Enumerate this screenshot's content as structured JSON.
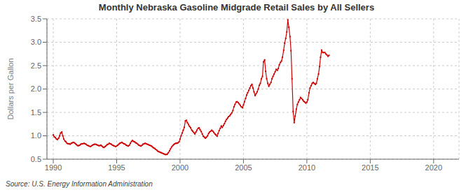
{
  "chart_data": {
    "type": "line",
    "title": "Monthly Nebraska Gasoline Midgrade Retail Sales by All Sellers",
    "ylabel": "Dollars per Gallon",
    "annotations": [
      "Source: U.S. Energy Information Administration"
    ],
    "color": "#cc0000",
    "marker": "square",
    "line_style": "solid",
    "grid": true,
    "xlim": [
      1989.5,
      2022
    ],
    "ylim": [
      0.5,
      3.5
    ],
    "xticks": [
      1990,
      1995,
      2000,
      2005,
      2010,
      2015,
      2020
    ],
    "yticks": [
      0.5,
      {
        "value": 1.0,
        "label": "1.0"
      },
      1.5,
      {
        "value": 2.0,
        "label": "2.0"
      },
      2.5,
      {
        "value": 3.0,
        "label": "3.0"
      },
      3.5
    ],
    "x": [
      1990.0,
      1990.08,
      1990.17,
      1990.25,
      1990.33,
      1990.42,
      1990.5,
      1990.58,
      1990.67,
      1990.75,
      1990.83,
      1990.92,
      1991.0,
      1991.08,
      1991.17,
      1991.25,
      1991.33,
      1991.42,
      1991.5,
      1991.58,
      1991.67,
      1991.75,
      1991.83,
      1991.92,
      1992.0,
      1992.08,
      1992.17,
      1992.25,
      1992.33,
      1992.42,
      1992.5,
      1992.58,
      1992.67,
      1992.75,
      1992.83,
      1992.92,
      1993.0,
      1993.08,
      1993.17,
      1993.25,
      1993.33,
      1993.42,
      1993.5,
      1993.58,
      1993.67,
      1993.75,
      1993.83,
      1993.92,
      1994.0,
      1994.08,
      1994.17,
      1994.25,
      1994.33,
      1994.42,
      1994.5,
      1994.58,
      1994.67,
      1994.75,
      1994.83,
      1994.92,
      1995.0,
      1995.08,
      1995.17,
      1995.25,
      1995.33,
      1995.42,
      1995.5,
      1995.58,
      1995.67,
      1995.75,
      1995.83,
      1995.92,
      1996.0,
      1996.08,
      1996.17,
      1996.25,
      1996.33,
      1996.42,
      1996.5,
      1996.58,
      1996.67,
      1996.75,
      1996.83,
      1996.92,
      1997.0,
      1997.08,
      1997.17,
      1997.25,
      1997.33,
      1997.42,
      1997.5,
      1997.58,
      1997.67,
      1997.75,
      1997.83,
      1997.92,
      1998.0,
      1998.08,
      1998.17,
      1998.25,
      1998.33,
      1998.42,
      1998.5,
      1998.58,
      1998.67,
      1998.75,
      1998.83,
      1998.92,
      1999.0,
      1999.08,
      1999.17,
      1999.25,
      1999.33,
      1999.42,
      1999.5,
      1999.58,
      1999.67,
      1999.75,
      1999.83,
      1999.92,
      2000.0,
      2000.08,
      2000.17,
      2000.25,
      2000.33,
      2000.42,
      2000.5,
      2000.58,
      2000.67,
      2000.75,
      2000.83,
      2000.92,
      2001.0,
      2001.08,
      2001.17,
      2001.25,
      2001.33,
      2001.42,
      2001.5,
      2001.58,
      2001.67,
      2001.75,
      2001.83,
      2001.92,
      2002.0,
      2002.08,
      2002.17,
      2002.25,
      2002.33,
      2002.42,
      2002.5,
      2002.58,
      2002.67,
      2002.75,
      2002.83,
      2002.92,
      2003.0,
      2003.08,
      2003.17,
      2003.25,
      2003.33,
      2003.42,
      2003.5,
      2003.58,
      2003.67,
      2003.75,
      2003.83,
      2003.92,
      2004.0,
      2004.08,
      2004.17,
      2004.25,
      2004.33,
      2004.42,
      2004.5,
      2004.58,
      2004.67,
      2004.75,
      2004.83,
      2004.92,
      2005.0,
      2005.08,
      2005.17,
      2005.25,
      2005.33,
      2005.42,
      2005.5,
      2005.58,
      2005.67,
      2005.75,
      2005.83,
      2005.92,
      2006.0,
      2006.08,
      2006.17,
      2006.25,
      2006.33,
      2006.42,
      2006.5,
      2006.58,
      2006.67,
      2006.75,
      2006.83,
      2006.92,
      2007.0,
      2007.08,
      2007.17,
      2007.25,
      2007.33,
      2007.42,
      2007.5,
      2007.58,
      2007.67,
      2007.75,
      2007.83,
      2007.92,
      2008.0,
      2008.08,
      2008.17,
      2008.25,
      2008.33,
      2008.42,
      2008.5,
      2008.58,
      2008.67,
      2008.75,
      2008.83,
      2008.92,
      2009.0,
      2009.08,
      2009.17,
      2009.25,
      2009.33,
      2009.42,
      2009.5,
      2009.58,
      2009.67,
      2009.75,
      2009.83,
      2009.92,
      2010.0,
      2010.08,
      2010.17,
      2010.25,
      2010.33,
      2010.42,
      2010.5,
      2010.58,
      2010.67,
      2010.75,
      2010.83,
      2010.92,
      2011.0,
      2011.08,
      2011.17,
      2011.25,
      2011.33,
      2011.42,
      2011.5,
      2011.58,
      2011.67,
      2011.75
    ],
    "values": [
      1.02,
      0.98,
      0.96,
      0.93,
      0.92,
      0.95,
      1.0,
      1.06,
      1.08,
      1.0,
      0.93,
      0.89,
      0.87,
      0.84,
      0.83,
      0.83,
      0.82,
      0.84,
      0.85,
      0.86,
      0.85,
      0.83,
      0.81,
      0.79,
      0.79,
      0.8,
      0.82,
      0.83,
      0.83,
      0.84,
      0.83,
      0.82,
      0.8,
      0.79,
      0.78,
      0.77,
      0.78,
      0.8,
      0.81,
      0.82,
      0.82,
      0.81,
      0.8,
      0.79,
      0.79,
      0.8,
      0.78,
      0.76,
      0.75,
      0.77,
      0.79,
      0.81,
      0.82,
      0.84,
      0.83,
      0.82,
      0.8,
      0.79,
      0.78,
      0.77,
      0.78,
      0.8,
      0.82,
      0.84,
      0.85,
      0.86,
      0.84,
      0.83,
      0.82,
      0.8,
      0.79,
      0.78,
      0.8,
      0.84,
      0.88,
      0.9,
      0.88,
      0.87,
      0.85,
      0.84,
      0.82,
      0.8,
      0.79,
      0.78,
      0.8,
      0.82,
      0.83,
      0.84,
      0.83,
      0.82,
      0.81,
      0.8,
      0.79,
      0.78,
      0.76,
      0.74,
      0.73,
      0.71,
      0.69,
      0.67,
      0.66,
      0.65,
      0.64,
      0.63,
      0.62,
      0.61,
      0.6,
      0.6,
      0.61,
      0.64,
      0.68,
      0.72,
      0.76,
      0.79,
      0.81,
      0.83,
      0.84,
      0.84,
      0.85,
      0.87,
      0.93,
      1.0,
      1.06,
      1.12,
      1.18,
      1.32,
      1.33,
      1.28,
      1.24,
      1.2,
      1.17,
      1.12,
      1.1,
      1.07,
      1.04,
      1.08,
      1.12,
      1.16,
      1.17,
      1.13,
      1.09,
      1.04,
      0.99,
      0.97,
      0.95,
      0.97,
      1.0,
      1.05,
      1.08,
      1.1,
      1.12,
      1.1,
      1.07,
      1.04,
      1.02,
      0.99,
      1.05,
      1.11,
      1.16,
      1.21,
      1.18,
      1.22,
      1.26,
      1.31,
      1.35,
      1.38,
      1.41,
      1.43,
      1.46,
      1.49,
      1.54,
      1.62,
      1.67,
      1.72,
      1.73,
      1.71,
      1.68,
      1.65,
      1.62,
      1.6,
      1.66,
      1.73,
      1.8,
      1.87,
      1.92,
      1.97,
      2.02,
      2.07,
      2.1,
      2.02,
      1.94,
      1.86,
      1.9,
      1.94,
      2.0,
      2.08,
      2.12,
      2.22,
      2.27,
      2.58,
      2.62,
      2.38,
      2.22,
      2.12,
      2.06,
      2.1,
      2.14,
      2.22,
      2.27,
      2.32,
      2.37,
      2.42,
      2.4,
      2.44,
      2.52,
      2.57,
      2.6,
      2.68,
      2.83,
      2.98,
      3.08,
      3.22,
      3.48,
      3.32,
      3.12,
      2.82,
      2.22,
      1.52,
      1.28,
      1.42,
      1.57,
      1.67,
      1.72,
      1.77,
      1.82,
      1.8,
      1.77,
      1.74,
      1.72,
      1.7,
      1.72,
      1.77,
      1.92,
      2.02,
      2.07,
      2.12,
      2.14,
      2.12,
      2.1,
      2.12,
      2.22,
      2.32,
      2.48,
      2.68,
      2.83,
      2.78,
      2.78,
      2.78,
      2.75,
      2.73,
      2.7,
      2.72
    ]
  }
}
